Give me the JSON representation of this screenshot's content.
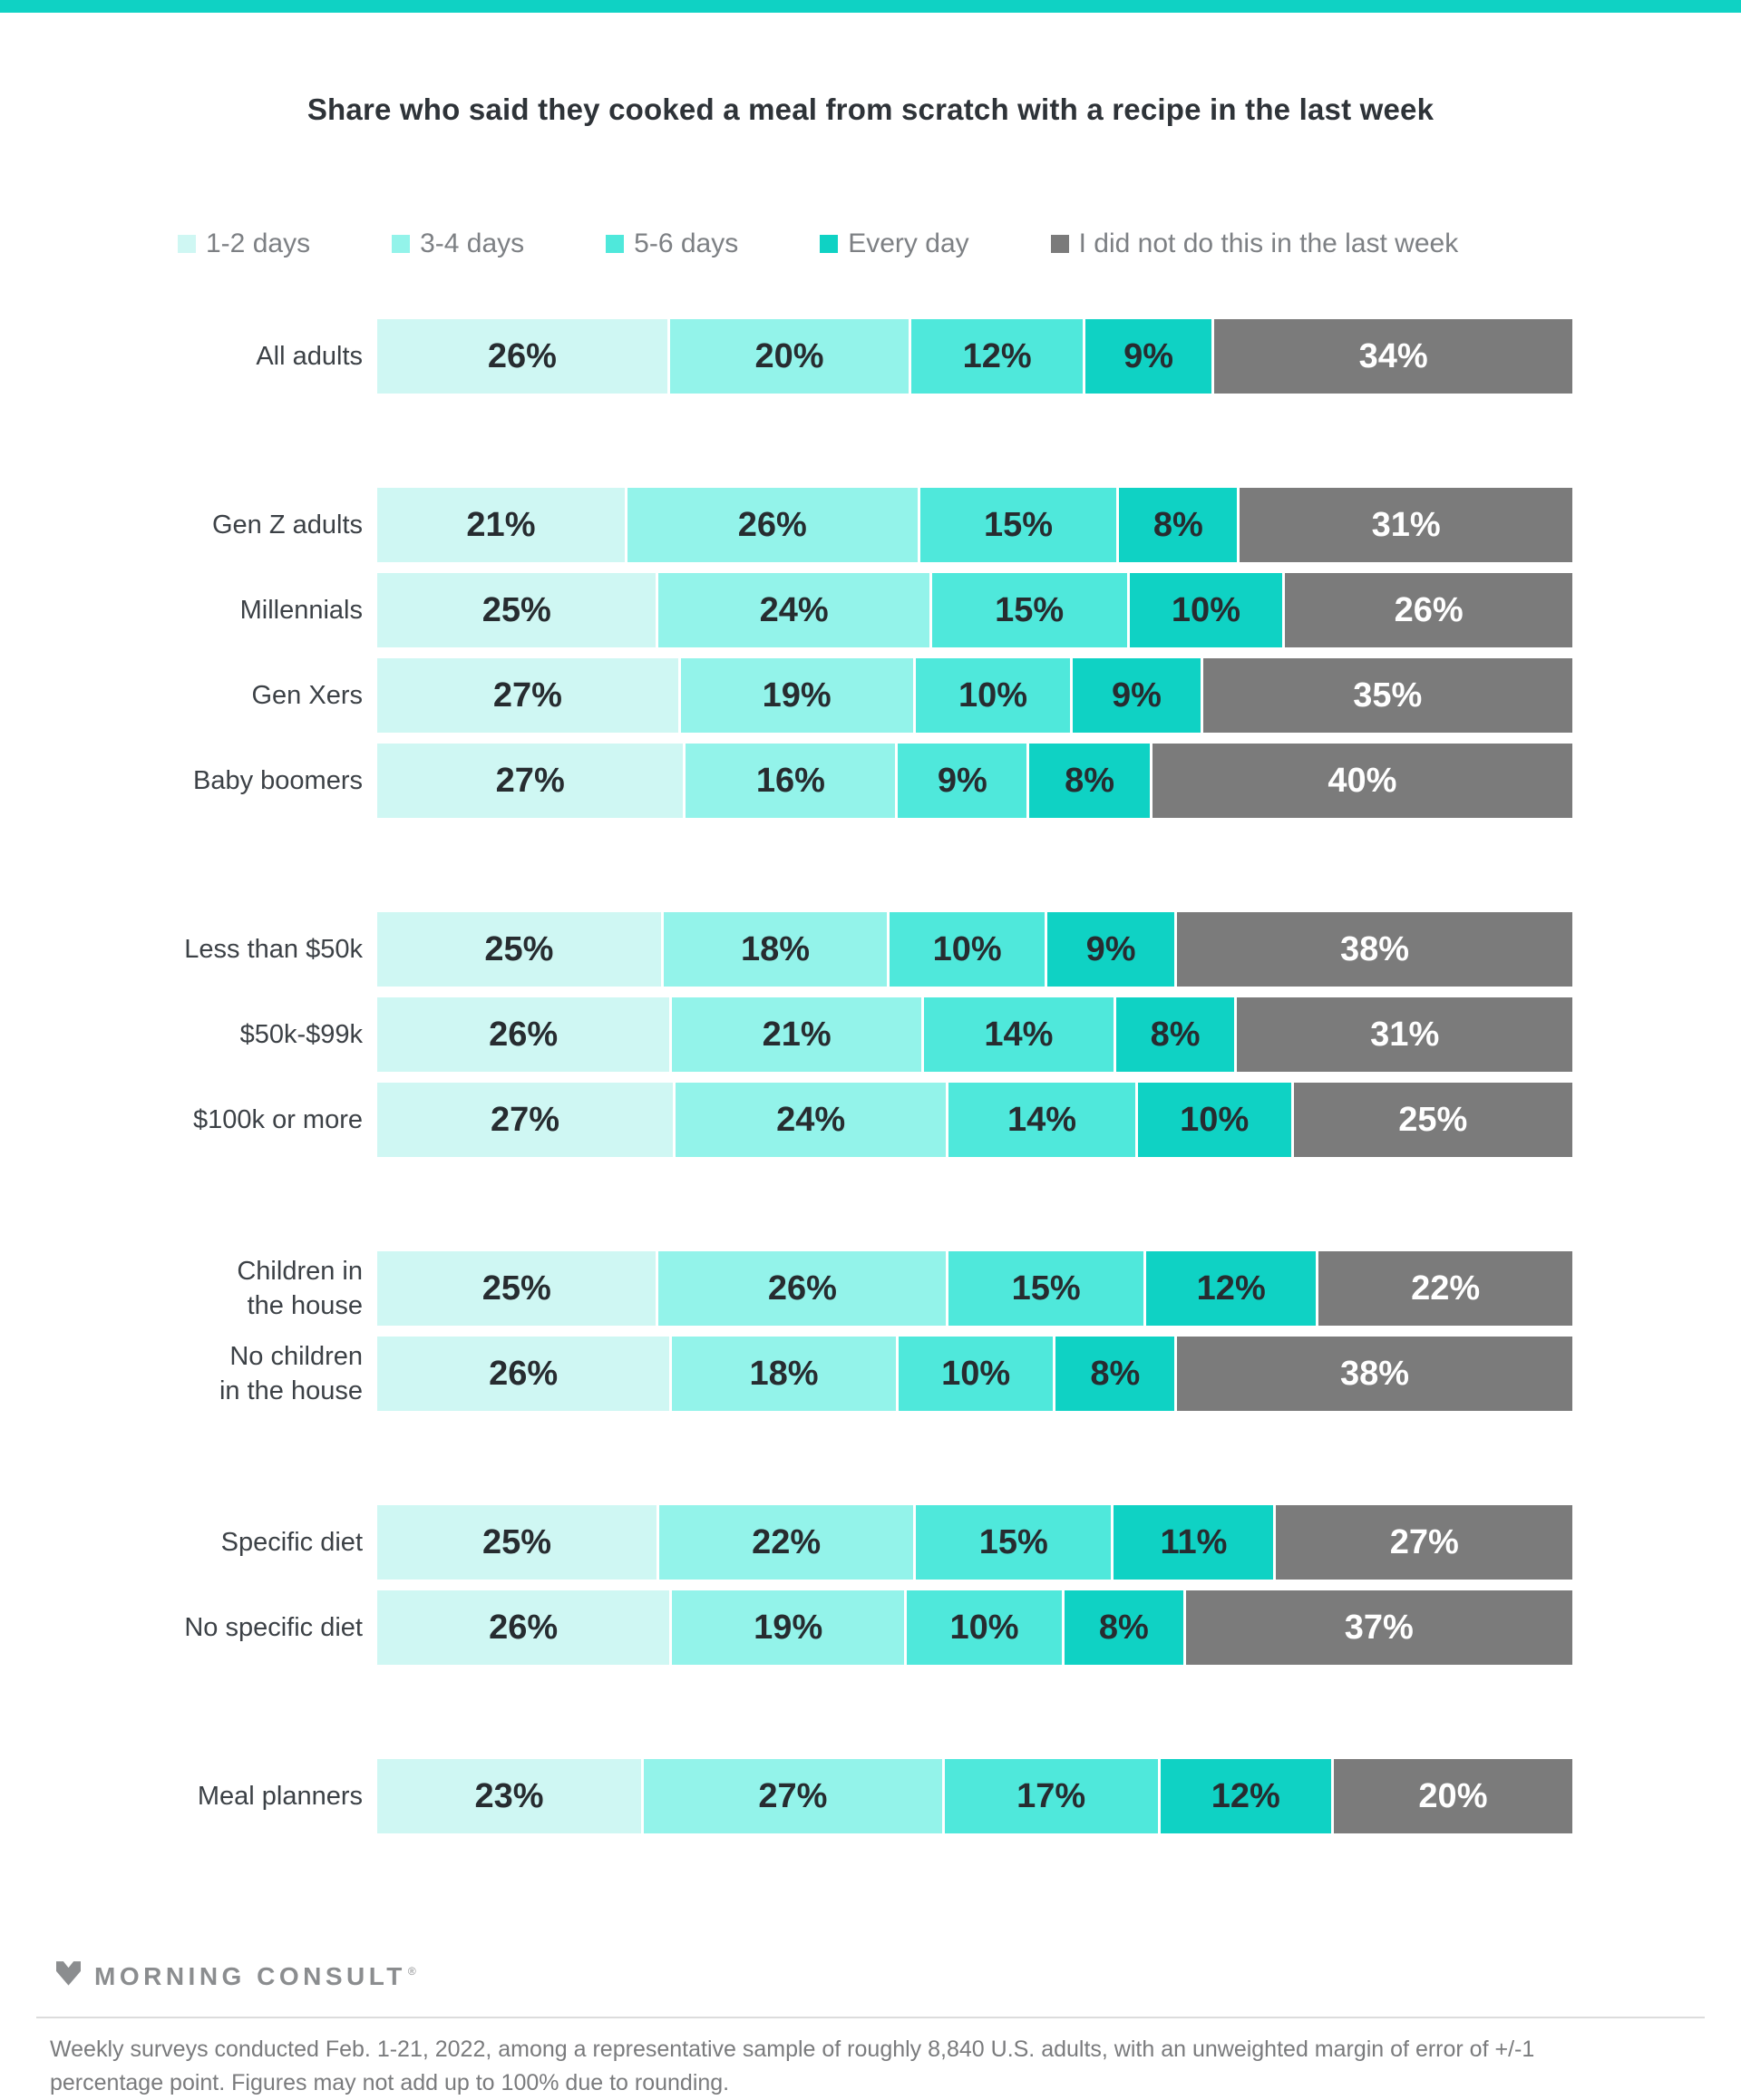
{
  "page": {
    "title": "Share who said they cooked a meal from scratch with a recipe in the last week",
    "accent_color": "#0FD2C4"
  },
  "legend": [
    {
      "label": "1-2 days",
      "color": "#CFF7F3"
    },
    {
      "label": "3-4 days",
      "color": "#93F3EA"
    },
    {
      "label": "5-6 days",
      "color": "#4FE8DB"
    },
    {
      "label": "Every day",
      "color": "#0FD2C4"
    },
    {
      "label": "I did not do this in the last week",
      "color": "#7B7B7B"
    }
  ],
  "chart_data": {
    "type": "bar",
    "orientation": "horizontal",
    "stacked": true,
    "unit": "%",
    "title": "Share who said they cooked a meal from scratch with a recipe in the last week",
    "series_names": [
      "1-2 days",
      "3-4 days",
      "5-6 days",
      "Every day",
      "I did not do this in the last week"
    ],
    "colors": [
      "#CFF7F3",
      "#93F3EA",
      "#4FE8DB",
      "#0FD2C4",
      "#7B7B7B"
    ],
    "gray_series_index": 4,
    "groups": [
      {
        "rows": [
          {
            "label": "All adults",
            "values": [
              26,
              20,
              12,
              9,
              34
            ]
          }
        ]
      },
      {
        "rows": [
          {
            "label": "Gen Z adults",
            "values": [
              21,
              26,
              15,
              8,
              31
            ]
          },
          {
            "label": "Millennials",
            "values": [
              25,
              24,
              15,
              10,
              26
            ]
          },
          {
            "label": "Gen Xers",
            "values": [
              27,
              19,
              10,
              9,
              35
            ]
          },
          {
            "label": "Baby boomers",
            "values": [
              27,
              16,
              9,
              8,
              40
            ]
          }
        ]
      },
      {
        "rows": [
          {
            "label": "Less than $50k",
            "values": [
              25,
              18,
              10,
              9,
              38
            ]
          },
          {
            "label": "$50k-$99k",
            "values": [
              26,
              21,
              14,
              8,
              31
            ]
          },
          {
            "label": "$100k or more",
            "values": [
              27,
              24,
              14,
              10,
              25
            ]
          }
        ]
      },
      {
        "rows": [
          {
            "label": "Children in\nthe house",
            "values": [
              25,
              26,
              15,
              12,
              22
            ]
          },
          {
            "label": "No children\nin the house",
            "values": [
              26,
              18,
              10,
              8,
              38
            ]
          }
        ]
      },
      {
        "rows": [
          {
            "label": "Specific diet",
            "values": [
              25,
              22,
              15,
              11,
              27
            ]
          },
          {
            "label": "No specific diet",
            "values": [
              26,
              19,
              10,
              8,
              37
            ]
          }
        ]
      },
      {
        "rows": [
          {
            "label": "Meal planners",
            "values": [
              23,
              27,
              17,
              12,
              20
            ]
          }
        ]
      }
    ]
  },
  "footer": {
    "logo_text": "MORNING CONSULT",
    "registered_mark": "®",
    "note": "Weekly surveys conducted Feb. 1-21, 2022, among a representative sample of roughly 8,840 U.S. adults, with an unweighted margin of error of +/-1\npercentage point. Figures may not add up to 100% due to rounding."
  }
}
